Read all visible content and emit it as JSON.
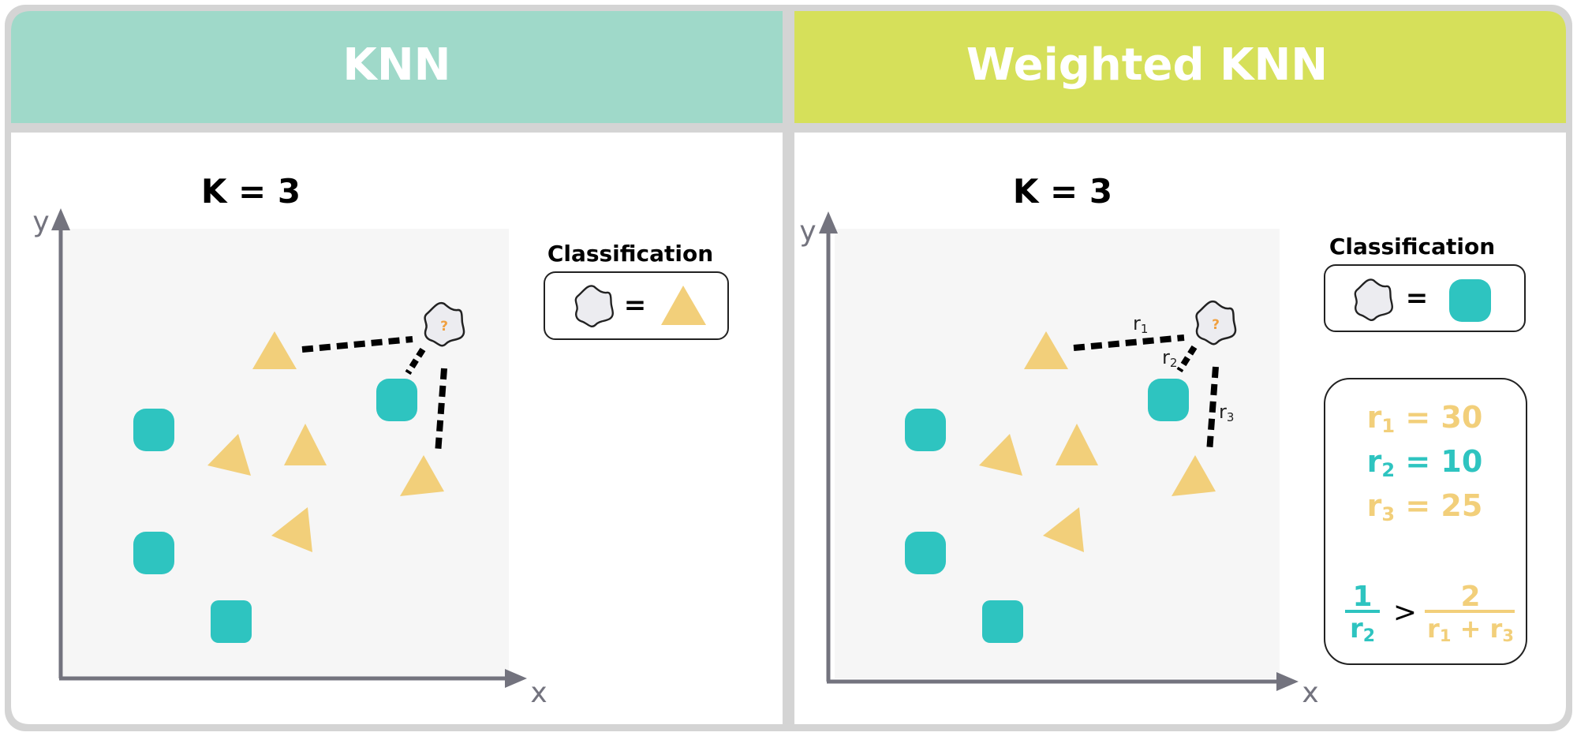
{
  "panels": [
    {
      "header": "KNN",
      "k_label": "K = 3",
      "classification_label": "Classification",
      "result_shape": "triangle",
      "axis_x": "x",
      "axis_y": "y",
      "distance_labels": []
    },
    {
      "header": "Weighted KNN",
      "k_label": "K = 3",
      "classification_label": "Classification",
      "result_shape": "rounded-square",
      "axis_x": "x",
      "axis_y": "y",
      "distance_labels": [
        {
          "base": "r",
          "sub": "1"
        },
        {
          "base": "r",
          "sub": "2"
        },
        {
          "base": "r",
          "sub": "3"
        }
      ],
      "distances": [
        {
          "base": "r",
          "sub": "1",
          "eq": " = 30",
          "color": "#f2cf7a"
        },
        {
          "base": "r",
          "sub": "2",
          "eq": " = 10",
          "color": "#2ec4c0"
        },
        {
          "base": "r",
          "sub": "3",
          "eq": " = 25",
          "color": "#f2cf7a"
        }
      ],
      "formula": {
        "left_num": "1",
        "left_den": {
          "base": "r",
          "sub": "2"
        },
        "operator": ">",
        "right_num": "2",
        "right_den": [
          {
            "base": "r",
            "sub": "1"
          },
          {
            "sep": " + "
          },
          {
            "base": "r",
            "sub": "3"
          }
        ]
      }
    }
  ],
  "query_mark": "?",
  "equals_sign": "=",
  "colors": {
    "frame": "#d4d4d4",
    "header_knn": "#9fd9c9",
    "header_weighted": "#d6e05a",
    "teal": "#2ec4c0",
    "yellow": "#f2cf7a",
    "axis": "#73737e",
    "plot_bg": "#f6f6f6",
    "query_fill": "#ececf0",
    "query_mark": "#f0a040"
  }
}
